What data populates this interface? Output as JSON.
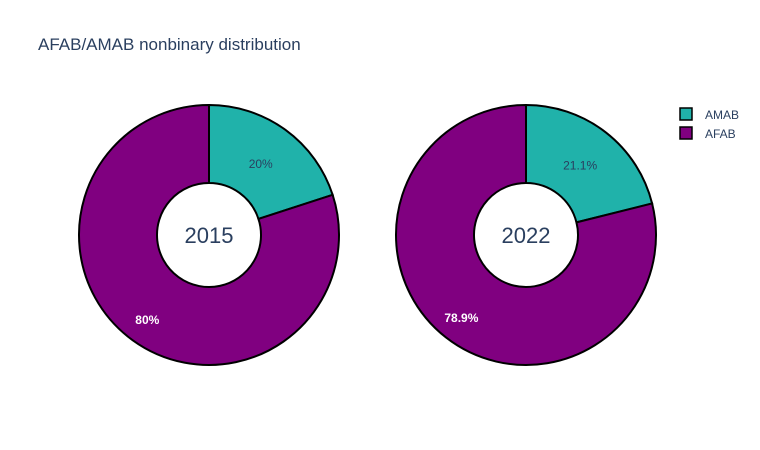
{
  "chart_data": {
    "type": "pie",
    "title": "AFAB/AMAB nonbinary distribution",
    "legend_position": "top-right",
    "series_names": [
      "AMAB",
      "AFAB"
    ],
    "colors": {
      "AMAB": "#20b2aa",
      "AFAB": "#800080"
    },
    "charts": [
      {
        "center_label": "2015",
        "slices": [
          {
            "name": "AMAB",
            "value": 20.0,
            "label": "20%"
          },
          {
            "name": "AFAB",
            "value": 80.0,
            "label": "80%"
          }
        ]
      },
      {
        "center_label": "2022",
        "slices": [
          {
            "name": "AMAB",
            "value": 21.1,
            "label": "21.1%"
          },
          {
            "name": "AFAB",
            "value": 78.9,
            "label": "78.9%"
          }
        ]
      }
    ]
  }
}
